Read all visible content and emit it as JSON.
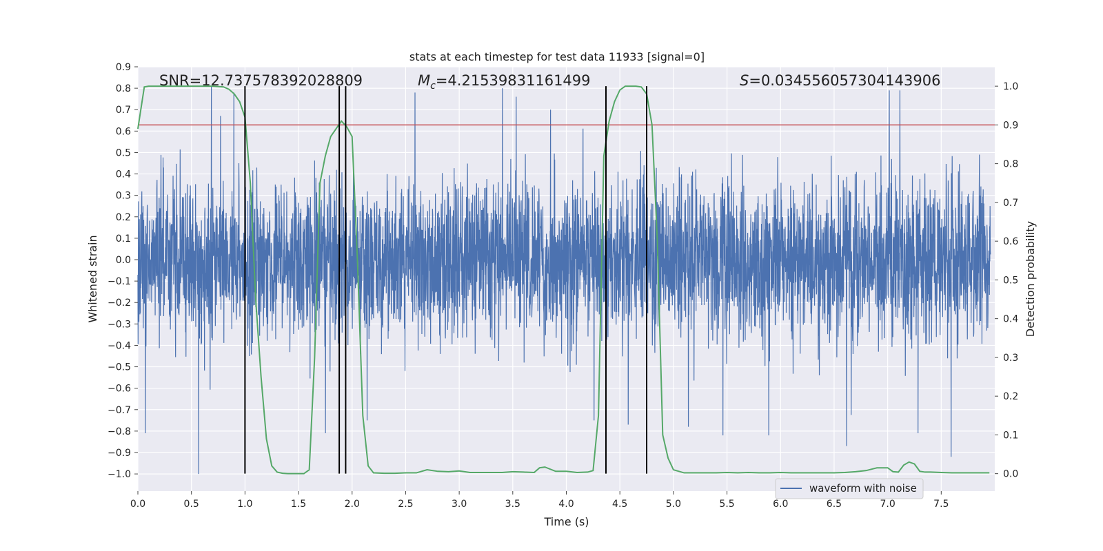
{
  "chart_data": {
    "type": "line",
    "title": "stats at each timestep for test data 11933 [signal=0]",
    "xlabel": "Time (s)",
    "ylabel_left": "Whitened strain",
    "ylabel_right": "Detection probability",
    "xlim": [
      0.0,
      8.0
    ],
    "ylim_left": [
      -1.08,
      0.9
    ],
    "ylim_right": [
      -0.045,
      1.05
    ],
    "x_ticks": [
      0.0,
      0.5,
      1.0,
      1.5,
      2.0,
      2.5,
      3.0,
      3.5,
      4.0,
      4.5,
      5.0,
      5.5,
      6.0,
      6.5,
      7.0,
      7.5
    ],
    "x_tick_labels": [
      "0.0",
      "0.5",
      "1.0",
      "1.5",
      "2.0",
      "2.5",
      "3.0",
      "3.5",
      "4.0",
      "4.5",
      "5.0",
      "5.5",
      "6.0",
      "6.5",
      "7.0",
      "7.5"
    ],
    "y_left_ticks": [
      0.9,
      0.8,
      0.7,
      0.6,
      0.5,
      0.4,
      0.3,
      0.2,
      0.1,
      0.0,
      -0.1,
      -0.2,
      -0.3,
      -0.4,
      -0.5,
      -0.6,
      -0.7,
      -0.8,
      -0.9,
      -1.0
    ],
    "y_left_tick_labels": [
      "0.9",
      "0.8",
      "0.7",
      "0.6",
      "0.5",
      "0.4",
      "0.3",
      "0.2",
      "0.1",
      "0.0",
      "−0.1",
      "−0.2",
      "−0.3",
      "−0.4",
      "−0.5",
      "−0.6",
      "−0.7",
      "−0.8",
      "−0.9",
      "−1.0"
    ],
    "y_right_ticks": [
      1.0,
      0.9,
      0.8,
      0.7,
      0.6,
      0.5,
      0.4,
      0.3,
      0.2,
      0.1,
      0.0
    ],
    "y_right_tick_labels": [
      "1.0",
      "0.9",
      "0.8",
      "0.7",
      "0.6",
      "0.5",
      "0.4",
      "0.3",
      "0.2",
      "0.1",
      "0.0"
    ],
    "grid": true,
    "legend": {
      "position": "lower-right",
      "entries": [
        "waveform with noise"
      ]
    },
    "annotations": {
      "snr": "SNR=12.737578392028809",
      "mc_symbol": "M",
      "mc_subscript": "c",
      "mc_value": "=4.21539831161499",
      "s_symbol": "S",
      "s_value": "=0.034556057304143906"
    },
    "threshold": {
      "value": 0.9,
      "color": "#c44e52"
    },
    "vertical_lines": [
      1.0,
      1.88,
      1.94,
      4.37,
      4.75
    ],
    "series": [
      {
        "name": "waveform with noise",
        "axis": "left",
        "color": "#4c72b0",
        "sample_rate_hz": 2048,
        "duration_s": 8.0,
        "envelope_typical_abs": 0.42,
        "spikes": [
          {
            "t": 0.57,
            "v": -1.0
          },
          {
            "t": 0.69,
            "v": 0.81
          },
          {
            "t": 0.07,
            "v": -0.81
          },
          {
            "t": 2.6,
            "v": 0.78
          },
          {
            "t": 3.42,
            "v": 0.8
          },
          {
            "t": 3.55,
            "v": 0.76
          },
          {
            "t": 1.76,
            "v": -0.81
          },
          {
            "t": 4.6,
            "v": -0.77
          },
          {
            "t": 5.49,
            "v": -0.82
          },
          {
            "t": 5.92,
            "v": -0.82
          },
          {
            "t": 6.65,
            "v": -0.87
          },
          {
            "t": 7.05,
            "v": 0.79
          },
          {
            "t": 7.32,
            "v": -0.81
          },
          {
            "t": 7.63,
            "v": -0.92
          },
          {
            "t": 7.15,
            "v": 0.79
          },
          {
            "t": 0.9,
            "v": 0.78
          },
          {
            "t": 2.15,
            "v": -0.75
          },
          {
            "t": 4.28,
            "v": -0.75
          }
        ]
      },
      {
        "name": "detection probability",
        "axis": "right",
        "color": "#55a868",
        "x": [
          0.0,
          0.06,
          0.1,
          0.2,
          0.3,
          0.4,
          0.5,
          0.6,
          0.7,
          0.8,
          0.85,
          0.9,
          0.95,
          1.0,
          1.05,
          1.1,
          1.15,
          1.2,
          1.25,
          1.3,
          1.35,
          1.4,
          1.5,
          1.55,
          1.6,
          1.65,
          1.7,
          1.75,
          1.8,
          1.85,
          1.9,
          1.95,
          2.0,
          2.05,
          2.1,
          2.15,
          2.2,
          2.3,
          2.4,
          2.5,
          2.6,
          2.7,
          2.8,
          2.9,
          3.0,
          3.1,
          3.2,
          3.3,
          3.4,
          3.5,
          3.6,
          3.7,
          3.75,
          3.8,
          3.9,
          4.0,
          4.1,
          4.2,
          4.25,
          4.3,
          4.35,
          4.4,
          4.45,
          4.5,
          4.55,
          4.6,
          4.65,
          4.7,
          4.75,
          4.8,
          4.85,
          4.9,
          4.95,
          5.0,
          5.1,
          5.2,
          5.3,
          5.4,
          5.5,
          5.6,
          5.7,
          5.8,
          5.9,
          6.0,
          6.1,
          6.2,
          6.3,
          6.4,
          6.5,
          6.6,
          6.7,
          6.8,
          6.9,
          6.95,
          7.0,
          7.05,
          7.1,
          7.15,
          7.2,
          7.25,
          7.3,
          7.35,
          7.4,
          7.5,
          7.6,
          7.7,
          7.8,
          7.9,
          7.95
        ],
        "y": [
          0.89,
          0.998,
          1.0,
          1.0,
          1.0,
          1.0,
          1.0,
          1.0,
          1.0,
          0.998,
          0.992,
          0.98,
          0.96,
          0.92,
          0.75,
          0.45,
          0.25,
          0.09,
          0.02,
          0.004,
          0.001,
          0.0,
          0.0,
          0.0,
          0.01,
          0.3,
          0.75,
          0.82,
          0.87,
          0.89,
          0.91,
          0.895,
          0.87,
          0.55,
          0.15,
          0.02,
          0.002,
          0.001,
          0.001,
          0.002,
          0.002,
          0.01,
          0.006,
          0.005,
          0.007,
          0.003,
          0.003,
          0.003,
          0.003,
          0.005,
          0.004,
          0.003,
          0.015,
          0.017,
          0.006,
          0.006,
          0.003,
          0.004,
          0.008,
          0.15,
          0.82,
          0.91,
          0.96,
          0.99,
          1.0,
          1.0,
          1.0,
          0.998,
          0.98,
          0.9,
          0.6,
          0.1,
          0.04,
          0.01,
          0.002,
          0.002,
          0.002,
          0.002,
          0.003,
          0.002,
          0.003,
          0.002,
          0.002,
          0.003,
          0.002,
          0.002,
          0.002,
          0.002,
          0.002,
          0.003,
          0.005,
          0.008,
          0.015,
          0.015,
          0.015,
          0.005,
          0.004,
          0.022,
          0.03,
          0.025,
          0.006,
          0.004,
          0.004,
          0.003,
          0.002,
          0.002,
          0.002,
          0.002,
          0.002
        ]
      }
    ]
  }
}
